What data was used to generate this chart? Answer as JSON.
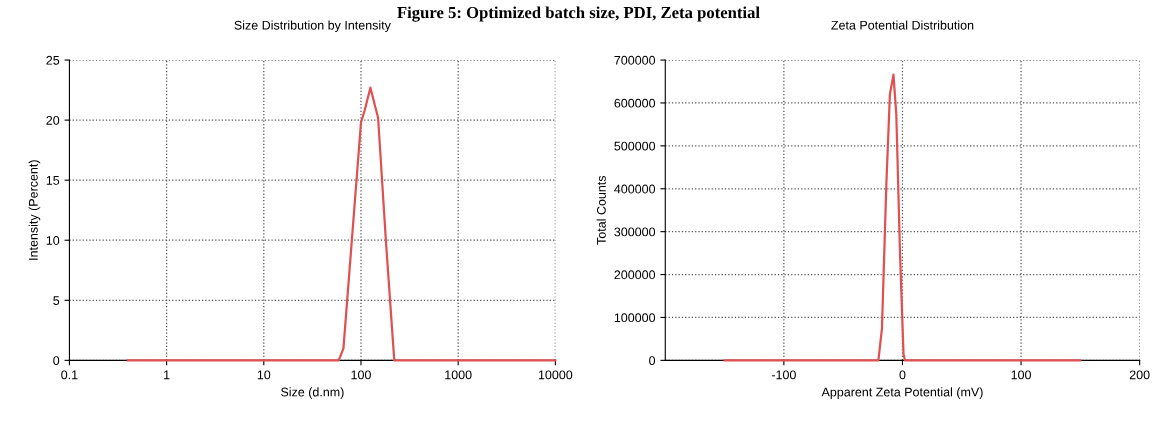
{
  "chart_data": [
    {
      "type": "line",
      "title": "Size Distribution by Intensity",
      "annotations": [
        "Figure 5: Optimized batch size, PDI, Zeta potential"
      ],
      "xlabel": "Size (d.nm)",
      "ylabel": "Intensity (Percent)",
      "log": "x",
      "grid": true,
      "marker": "none",
      "line_style": "solid",
      "x": [
        0.4,
        59,
        66,
        100,
        109,
        125,
        150,
        181,
        220,
        10000
      ],
      "series": [
        {
          "color": "#e05050",
          "values": [
            0,
            0,
            1,
            19.8,
            20.8,
            22.7,
            20.2,
            9.8,
            0,
            0
          ]
        }
      ],
      "xlim": [
        0.1,
        10000
      ],
      "xticks": [
        0.1,
        1,
        10,
        100,
        1000,
        10000
      ],
      "ylim": [
        0,
        25
      ],
      "yticks": [
        0,
        5,
        10,
        15,
        20,
        25
      ]
    },
    {
      "type": "line",
      "title": "Zeta Potential Distribution",
      "xlabel": "Apparent Zeta Potential (mV)",
      "ylabel": "Total Counts",
      "grid": true,
      "marker": "none",
      "line_style": "solid",
      "x": [
        -150,
        -20.3,
        -17.3,
        -13.6,
        -10.6,
        -7.6,
        -5.2,
        -2.1,
        0.9,
        2.1,
        150
      ],
      "series": [
        {
          "color": "#e05050",
          "values": [
            0,
            0,
            74000,
            409000,
            620000,
            666000,
            574000,
            253000,
            14000,
            0,
            0
          ]
        }
      ],
      "xlim": [
        -200,
        200
      ],
      "xticks": [
        -100,
        0,
        100,
        200
      ],
      "ylim": [
        0,
        700000
      ],
      "yticks": [
        0,
        100000,
        200000,
        300000,
        400000,
        500000,
        600000,
        700000
      ]
    }
  ]
}
